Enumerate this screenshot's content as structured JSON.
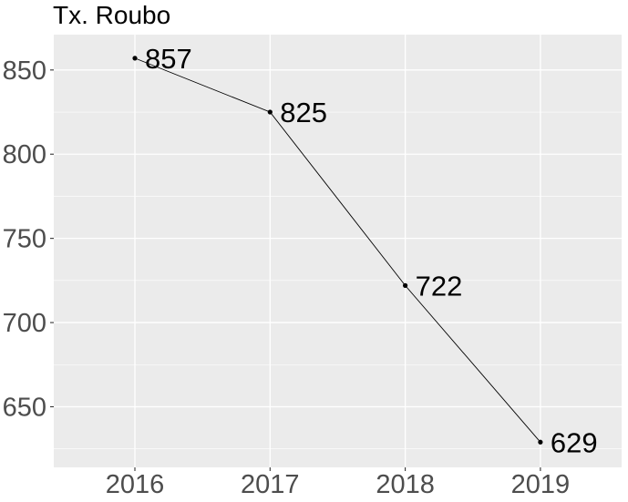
{
  "chart_data": {
    "type": "line",
    "title": "Tx. Roubo",
    "xlabel": "",
    "ylabel": "",
    "x": [
      "2016",
      "2017",
      "2018",
      "2019"
    ],
    "values": [
      857,
      825,
      722,
      629
    ],
    "data_labels": [
      "857",
      "825",
      "722",
      "629"
    ],
    "y_ticks": [
      650,
      700,
      750,
      800,
      850
    ],
    "y_tick_labels": [
      "650",
      "700",
      "750",
      "800",
      "850"
    ],
    "ylim": [
      614,
      871
    ],
    "grid": true,
    "legend": "none",
    "colors": {
      "panel_background": "#ebebeb",
      "grid_major": "#ffffff",
      "line": "#000000",
      "point": "#000000",
      "tick_text": "#4d4d4d",
      "axis_tick": "#333333"
    }
  }
}
